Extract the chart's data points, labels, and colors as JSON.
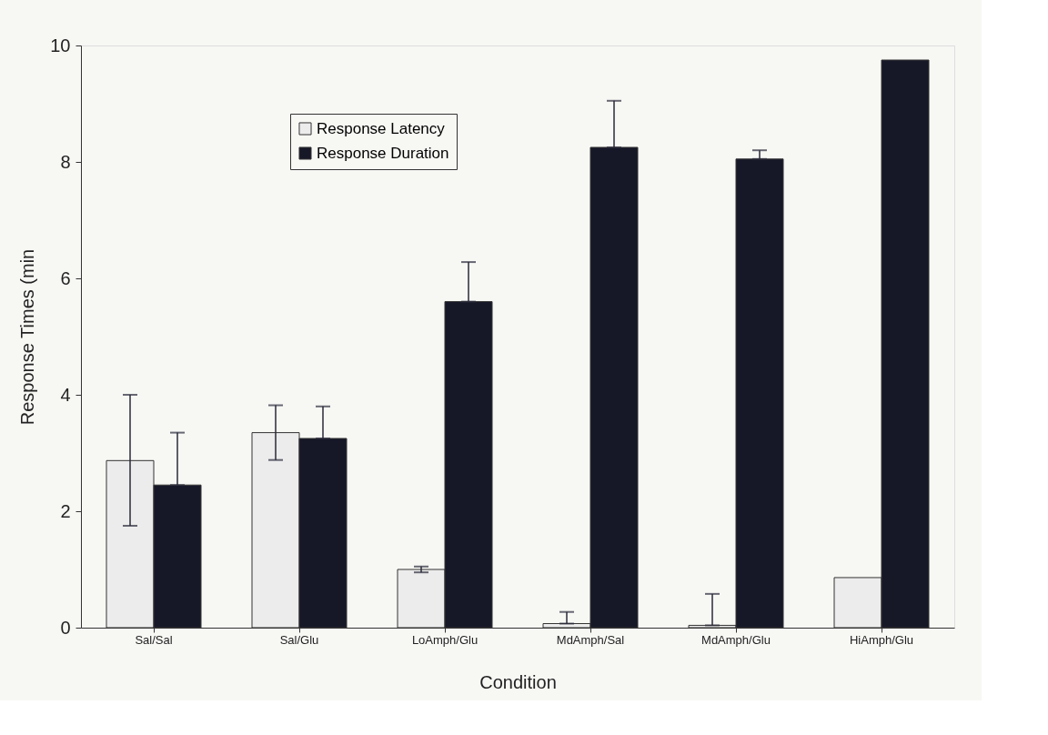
{
  "chart_data": {
    "type": "bar",
    "xlabel": "Condition",
    "ylabel": "Response Times (min",
    "categories": [
      "Sal/Sal",
      "Sal/Glu",
      "LoAmph/Glu",
      "MdAmph/Sal",
      "MdAmph/Glu",
      "HiAmph/Glu"
    ],
    "series": [
      {
        "name": "Response Latency",
        "color": "#ececec",
        "values": [
          2.87,
          3.35,
          1.0,
          0.07,
          0.04,
          0.86
        ],
        "errors": [
          [
            1.75,
            4.0
          ],
          [
            2.88,
            3.82
          ],
          [
            0.95,
            1.05
          ],
          [
            0.07,
            0.27
          ],
          [
            0.04,
            0.58
          ],
          null
        ]
      },
      {
        "name": "Response Duration",
        "color": "#161828",
        "values": [
          2.45,
          3.25,
          5.6,
          8.25,
          8.05,
          9.75
        ],
        "errors": [
          [
            2.45,
            3.35
          ],
          [
            3.25,
            3.8
          ],
          [
            5.6,
            6.28
          ],
          [
            8.25,
            9.05
          ],
          [
            8.05,
            8.2
          ],
          null
        ]
      }
    ],
    "ylim": [
      0,
      10
    ],
    "yticks": [
      0,
      2,
      4,
      6,
      8,
      10
    ],
    "grid": false,
    "legend": "top left"
  }
}
